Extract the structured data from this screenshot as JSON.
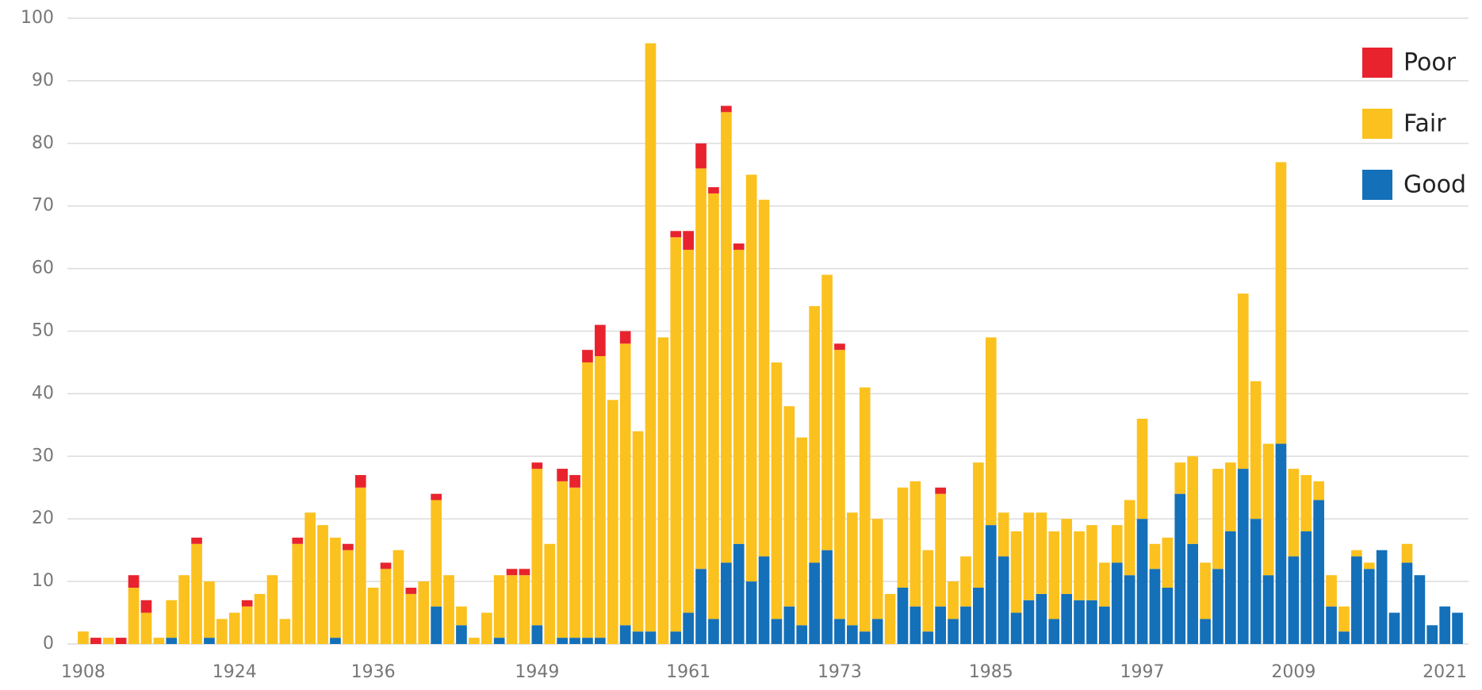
{
  "chart_data": {
    "type": "stacked_bar",
    "categories": [
      "1908",
      null,
      null,
      null,
      null,
      null,
      null,
      null,
      null,
      null,
      null,
      null,
      "1924",
      null,
      null,
      null,
      null,
      null,
      null,
      null,
      null,
      null,
      null,
      "1936",
      null,
      null,
      null,
      null,
      null,
      null,
      null,
      null,
      null,
      null,
      null,
      null,
      "1949",
      null,
      null,
      null,
      null,
      null,
      null,
      null,
      null,
      null,
      null,
      null,
      "1961",
      null,
      null,
      null,
      null,
      null,
      null,
      null,
      null,
      null,
      null,
      null,
      "1973",
      null,
      null,
      null,
      null,
      null,
      null,
      null,
      null,
      null,
      null,
      null,
      "1985",
      null,
      null,
      null,
      null,
      null,
      null,
      null,
      null,
      null,
      null,
      null,
      "1997",
      null,
      null,
      null,
      null,
      null,
      null,
      null,
      null,
      null,
      null,
      null,
      "2009",
      null,
      null,
      null,
      null,
      null,
      null,
      null,
      null,
      null,
      null,
      null,
      "2021",
      null
    ],
    "series": [
      {
        "name": "Good",
        "color": "#1470b8",
        "values": [
          0,
          0,
          0,
          0,
          0,
          0,
          0,
          1,
          0,
          0,
          1,
          0,
          0,
          0,
          0,
          0,
          0,
          0,
          0,
          0,
          1,
          0,
          0,
          0,
          0,
          0,
          0,
          0,
          6,
          0,
          3,
          0,
          0,
          1,
          0,
          0,
          3,
          0,
          1,
          1,
          1,
          1,
          0,
          3,
          2,
          2,
          0,
          2,
          5,
          12,
          4,
          13,
          16,
          10,
          14,
          4,
          6,
          3,
          13,
          15,
          4,
          3,
          2,
          4,
          0,
          9,
          6,
          2,
          6,
          4,
          6,
          9,
          19,
          14,
          5,
          7,
          8,
          4,
          8,
          7,
          7,
          6,
          13,
          11,
          20,
          12,
          9,
          24,
          16,
          4,
          12,
          18,
          28,
          20,
          11,
          32,
          14,
          18,
          23,
          6,
          2,
          14,
          12,
          15,
          5,
          13,
          11,
          3,
          6,
          5
        ]
      },
      {
        "name": "Fair",
        "color": "#fbc11e",
        "values": [
          2,
          0,
          1,
          0,
          9,
          5,
          1,
          6,
          11,
          16,
          9,
          4,
          5,
          6,
          8,
          11,
          4,
          16,
          21,
          19,
          16,
          15,
          25,
          9,
          12,
          15,
          8,
          10,
          17,
          11,
          3,
          1,
          5,
          10,
          11,
          11,
          25,
          16,
          25,
          24,
          44,
          45,
          39,
          45,
          32,
          94,
          49,
          63,
          58,
          64,
          68,
          72,
          47,
          65,
          57,
          41,
          32,
          30,
          41,
          44,
          43,
          18,
          39,
          16,
          8,
          16,
          20,
          13,
          18,
          6,
          8,
          20,
          30,
          7,
          13,
          14,
          13,
          14,
          12,
          11,
          12,
          7,
          6,
          12,
          16,
          4,
          8,
          5,
          14,
          9,
          16,
          11,
          28,
          22,
          21,
          45,
          14,
          9,
          3,
          5,
          4,
          1,
          1,
          0,
          0,
          3,
          0,
          0,
          0,
          0
        ]
      },
      {
        "name": "Poor",
        "color": "#e8232e",
        "values": [
          0,
          1,
          0,
          1,
          2,
          2,
          0,
          0,
          0,
          1,
          0,
          0,
          0,
          1,
          0,
          0,
          0,
          1,
          0,
          0,
          0,
          1,
          2,
          0,
          1,
          0,
          1,
          0,
          1,
          0,
          0,
          0,
          0,
          0,
          1,
          1,
          1,
          0,
          2,
          2,
          2,
          5,
          0,
          2,
          0,
          0,
          0,
          1,
          3,
          4,
          1,
          1,
          1,
          0,
          0,
          0,
          0,
          0,
          0,
          0,
          1,
          0,
          0,
          0,
          0,
          0,
          0,
          0,
          1,
          0,
          0,
          0,
          0,
          0,
          0,
          0,
          0,
          0,
          0,
          0,
          0,
          0,
          0,
          0,
          0,
          0,
          0,
          0,
          0,
          0,
          0,
          0,
          0,
          0,
          0,
          0,
          0,
          0,
          0,
          0,
          0,
          0,
          0,
          0,
          0,
          0,
          0,
          0,
          0,
          0
        ]
      }
    ],
    "ylim": [
      0,
      100
    ],
    "yticks": [
      0,
      10,
      20,
      30,
      40,
      50,
      60,
      70,
      80,
      90,
      100
    ],
    "grid": true,
    "legend": "top-right"
  }
}
